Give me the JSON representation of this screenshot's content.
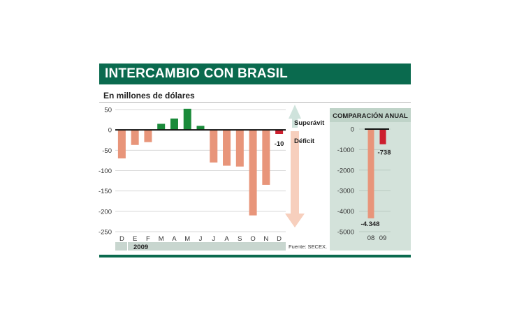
{
  "header": {
    "title": "INTERCAMBIO CON BRASIL"
  },
  "subtitle": "En millones de dólares",
  "source": "Fuente: SECEX.",
  "year_label": "2009",
  "legend": {
    "surplus": "Superávit",
    "deficit": "Déficit"
  },
  "colors": {
    "surplus": "#1a8a3a",
    "deficit_light": "#e8957a",
    "deficit_dark": "#cc1f2e",
    "brand": "#0a6a4e",
    "panel": "#d3e2da",
    "arrow": "#cfe3dc"
  },
  "chart_data": [
    {
      "type": "bar",
      "title": "",
      "categories": [
        "D",
        "E",
        "F",
        "M",
        "A",
        "M",
        "J",
        "J",
        "A",
        "S",
        "O",
        "N",
        "D"
      ],
      "values": [
        -70,
        -37,
        -30,
        15,
        28,
        52,
        10,
        -80,
        -88,
        -90,
        -210,
        -135,
        -10
      ],
      "ylim": [
        -250,
        50
      ],
      "yticks": [
        50,
        0,
        -50,
        -100,
        -150,
        -200,
        -250
      ],
      "grid": true,
      "data_labels": [
        {
          "index": 12,
          "text": "-10"
        }
      ],
      "xlabel": "2009",
      "ylabel": ""
    },
    {
      "type": "bar",
      "title": "COMPARACIÓN ANUAL",
      "categories": [
        "08",
        "09"
      ],
      "values": [
        -4348,
        -738
      ],
      "ylim": [
        -5000,
        0
      ],
      "yticks": [
        0,
        -1000,
        -2000,
        -3000,
        -4000,
        -5000
      ],
      "grid": true,
      "data_labels": [
        {
          "index": 0,
          "text": "-4.348"
        },
        {
          "index": 1,
          "text": "-738"
        }
      ],
      "xlabel": "",
      "ylabel": ""
    }
  ]
}
